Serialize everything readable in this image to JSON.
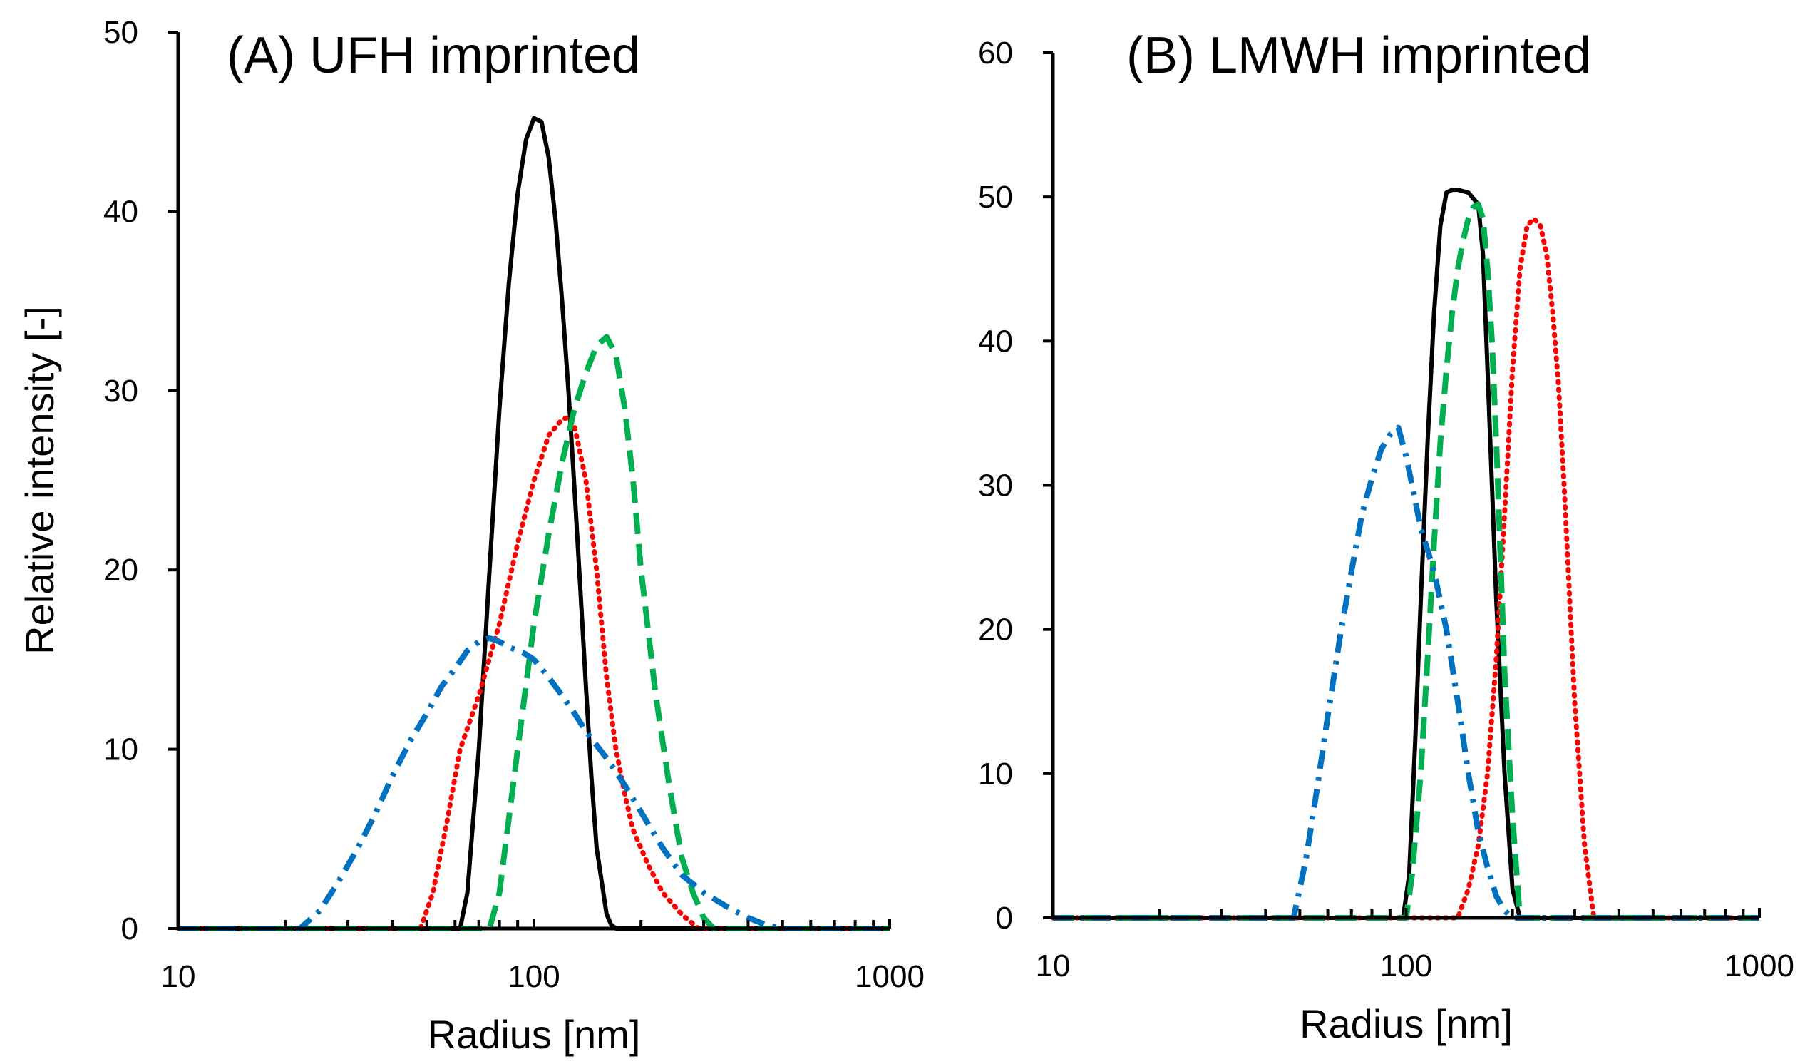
{
  "chart_data": [
    {
      "type": "line",
      "title": "(A) UFH imprinted",
      "xlabel": "Radius [nm]",
      "ylabel": "Relative intensity [-]",
      "xscale": "log",
      "xlim": [
        10,
        1000
      ],
      "ylim": [
        0,
        50
      ],
      "xticks": [
        "10",
        "100",
        "1000"
      ],
      "yticks": [
        "0",
        "10",
        "20",
        "30",
        "40",
        "50"
      ],
      "grid": false,
      "legend": "none",
      "series": [
        {
          "color": "#000000",
          "style": "solid",
          "x": [
            10,
            55,
            62,
            65,
            70,
            75,
            80,
            85,
            90,
            95,
            100,
            105,
            110,
            115,
            120,
            125,
            130,
            135,
            140,
            145,
            150,
            160,
            165,
            170,
            1000
          ],
          "y": [
            0,
            0,
            0,
            2,
            10,
            20,
            29,
            36,
            41,
            44,
            45.2,
            45,
            43,
            39.5,
            35,
            30,
            24.5,
            19,
            13.5,
            8.5,
            4.5,
            0.8,
            0.2,
            0,
            0
          ]
        },
        {
          "color": "#ff0000",
          "style": "dotted",
          "x": [
            10,
            48,
            52,
            57,
            62,
            70,
            80,
            90,
            100,
            110,
            120,
            125,
            130,
            140,
            150,
            160,
            170,
            180,
            190,
            210,
            230,
            260,
            290,
            1000
          ],
          "y": [
            0,
            0,
            2,
            6,
            10,
            13,
            17,
            21.5,
            25,
            27.5,
            28.4,
            28.5,
            28,
            25,
            20,
            14,
            10,
            7.5,
            5.5,
            3.5,
            2,
            0.8,
            0,
            0
          ]
        },
        {
          "color": "#00b050",
          "style": "dashed",
          "x": [
            10,
            75,
            80,
            90,
            100,
            110,
            120,
            130,
            140,
            150,
            160,
            170,
            180,
            190,
            200,
            220,
            240,
            260,
            280,
            300,
            320,
            1000
          ],
          "y": [
            0,
            0,
            2,
            10,
            17,
            22,
            26,
            29,
            31,
            32.5,
            33,
            32,
            29,
            25,
            20,
            13,
            8,
            4,
            2,
            0.6,
            0,
            0
          ]
        },
        {
          "color": "#0070c0",
          "style": "dashdot",
          "x": [
            10,
            22,
            25,
            28,
            32,
            36,
            40,
            45,
            50,
            55,
            60,
            65,
            70,
            75,
            80,
            85,
            90,
            95,
            100,
            110,
            120,
            130,
            140,
            160,
            180,
            200,
            230,
            260,
            300,
            350,
            400,
            450,
            500,
            1000
          ],
          "y": [
            0,
            0,
            1,
            2.5,
            4.5,
            6.5,
            8.5,
            10.5,
            12,
            13.5,
            14.5,
            15.5,
            16,
            16.2,
            16,
            15.7,
            15.5,
            15.3,
            15,
            14,
            13,
            12,
            11,
            9.5,
            8,
            6.5,
            4.5,
            3,
            2,
            1.2,
            0.6,
            0.2,
            0,
            0
          ]
        }
      ]
    },
    {
      "type": "line",
      "title": "(B) LMWH imprinted",
      "xlabel": "Radius [nm]",
      "ylabel": "",
      "xscale": "log",
      "xlim": [
        10,
        1000
      ],
      "ylim": [
        0,
        60
      ],
      "xticks": [
        "10",
        "100",
        "1000"
      ],
      "yticks": [
        "0",
        "10",
        "20",
        "30",
        "40",
        "50",
        "60"
      ],
      "grid": false,
      "legend": "none",
      "series": [
        {
          "color": "#000000",
          "style": "solid",
          "x": [
            10,
            98,
            102,
            106,
            110,
            115,
            120,
            125,
            130,
            135,
            140,
            150,
            160,
            165,
            170,
            175,
            180,
            190,
            200,
            210,
            1000
          ],
          "y": [
            0,
            0,
            3,
            12,
            22,
            33,
            42,
            48,
            50.3,
            50.5,
            50.5,
            50.3,
            49.5,
            46,
            38,
            30,
            22,
            10,
            2,
            0,
            0
          ]
        },
        {
          "color": "#ff0000",
          "style": "dotted",
          "x": [
            10,
            140,
            150,
            160,
            170,
            180,
            190,
            200,
            210,
            220,
            230,
            240,
            250,
            260,
            270,
            280,
            300,
            320,
            340,
            1000
          ],
          "y": [
            0,
            0,
            2,
            5,
            10,
            18,
            28,
            38,
            45,
            48,
            48.5,
            48,
            46,
            42,
            37,
            30,
            15,
            5,
            0,
            0
          ]
        },
        {
          "color": "#00b050",
          "style": "dashed",
          "x": [
            10,
            100,
            104,
            110,
            115,
            120,
            125,
            130,
            135,
            140,
            145,
            150,
            155,
            160,
            165,
            170,
            175,
            180,
            185,
            190,
            200,
            210,
            1000
          ],
          "y": [
            0,
            0,
            3,
            10,
            18,
            26,
            33,
            38,
            42,
            45,
            47,
            48.5,
            49.3,
            49.5,
            48.5,
            45,
            40,
            33,
            25,
            17,
            7,
            0,
            0
          ]
        },
        {
          "color": "#0070c0",
          "style": "dashdot",
          "x": [
            10,
            48,
            52,
            56,
            60,
            65,
            70,
            75,
            80,
            85,
            90,
            95,
            100,
            105,
            110,
            115,
            120,
            130,
            140,
            150,
            160,
            170,
            180,
            190,
            200,
            1000
          ],
          "y": [
            0,
            0,
            4,
            9,
            14,
            19.5,
            24,
            28,
            30.5,
            32.5,
            33.5,
            34,
            32,
            29.5,
            27,
            25.5,
            24,
            20,
            15,
            10,
            6,
            3.5,
            1.5,
            0.5,
            0,
            0
          ]
        }
      ]
    }
  ]
}
